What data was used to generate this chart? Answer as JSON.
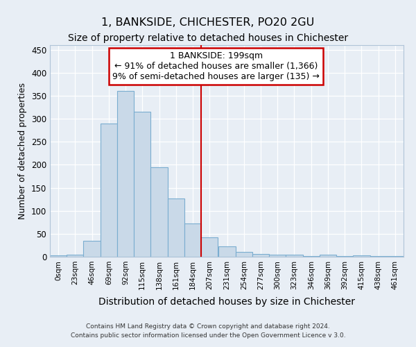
{
  "title": "1, BANKSIDE, CHICHESTER, PO20 2GU",
  "subtitle": "Size of property relative to detached houses in Chichester",
  "xlabel": "Distribution of detached houses by size in Chichester",
  "ylabel": "Number of detached properties",
  "bar_values": [
    3,
    5,
    35,
    290,
    360,
    315,
    195,
    127,
    72,
    42,
    22,
    10,
    6,
    5,
    4,
    2,
    5,
    2,
    3,
    2,
    1
  ],
  "bin_labels": [
    "0sqm",
    "23sqm",
    "46sqm",
    "69sqm",
    "92sqm",
    "115sqm",
    "138sqm",
    "161sqm",
    "184sqm",
    "207sqm",
    "231sqm",
    "254sqm",
    "277sqm",
    "300sqm",
    "323sqm",
    "346sqm",
    "369sqm",
    "392sqm",
    "415sqm",
    "438sqm",
    "461sqm"
  ],
  "bin_edges": [
    0,
    23,
    46,
    69,
    92,
    115,
    138,
    161,
    184,
    207,
    231,
    254,
    277,
    300,
    323,
    346,
    369,
    392,
    415,
    438,
    461,
    484
  ],
  "bar_color": "#c9d9e8",
  "bar_edge_color": "#7aadd0",
  "vline_x": 207,
  "vline_color": "#cc0000",
  "annotation_title": "1 BANKSIDE: 199sqm",
  "annotation_line1": "← 91% of detached houses are smaller (1,366)",
  "annotation_line2": "9% of semi-detached houses are larger (135) →",
  "annotation_box_color": "#cc0000",
  "annotation_bg": "#ffffff",
  "ylim": [
    0,
    460
  ],
  "yticks": [
    0,
    50,
    100,
    150,
    200,
    250,
    300,
    350,
    400,
    450
  ],
  "bg_color": "#e8eef5",
  "grid_color": "#ffffff",
  "footer1": "Contains HM Land Registry data © Crown copyright and database right 2024.",
  "footer2": "Contains public sector information licensed under the Open Government Licence v 3.0.",
  "title_fontsize": 11.5,
  "subtitle_fontsize": 10,
  "xlabel_fontsize": 10,
  "ylabel_fontsize": 9,
  "ann_fontsize": 9
}
